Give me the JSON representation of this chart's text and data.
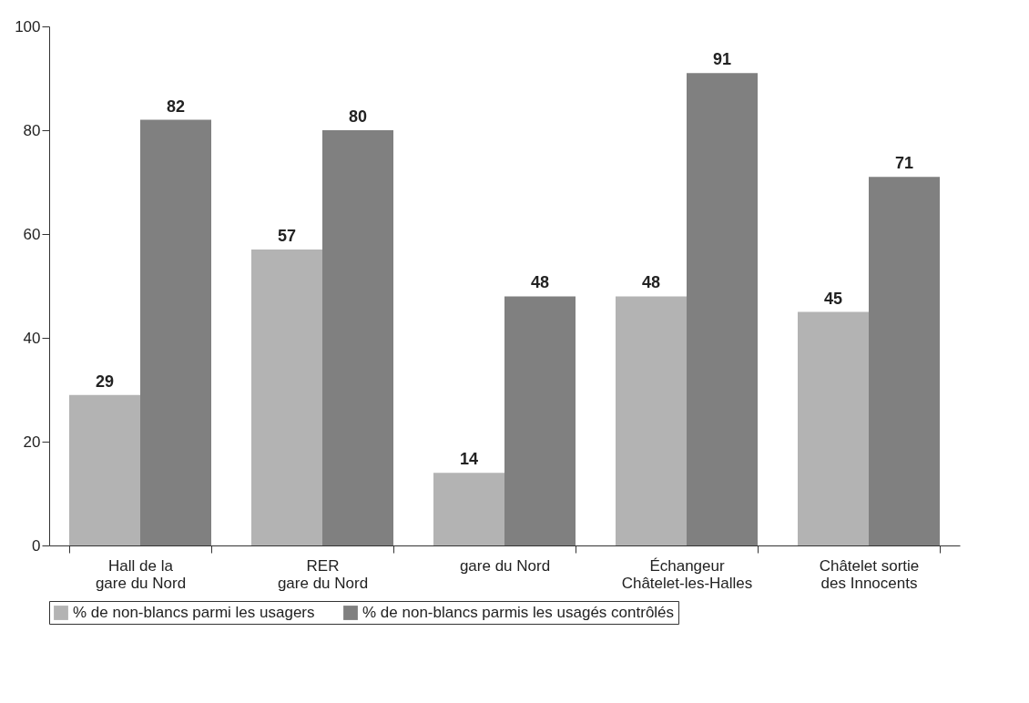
{
  "chart_data": {
    "type": "bar",
    "categories": [
      "Hall de la\ngare du Nord",
      "RER\ngare du Nord",
      "gare du Nord",
      "Échangeur\nChâtelet-les-Halles",
      "Châtelet sortie\ndes Innocents"
    ],
    "series": [
      {
        "name": "% de non-blancs parmi les usagers",
        "color": "#b3b3b3",
        "values": [
          29,
          57,
          14,
          48,
          45
        ]
      },
      {
        "name": "% de non-blancs parmis les usagés contrôlés",
        "color": "#808080",
        "values": [
          82,
          80,
          48,
          91,
          71
        ]
      }
    ],
    "ylim": [
      0,
      100
    ],
    "yticks": [
      0,
      20,
      40,
      60,
      80,
      100
    ],
    "grid": false,
    "legend": "bottom",
    "data_labels": true
  }
}
